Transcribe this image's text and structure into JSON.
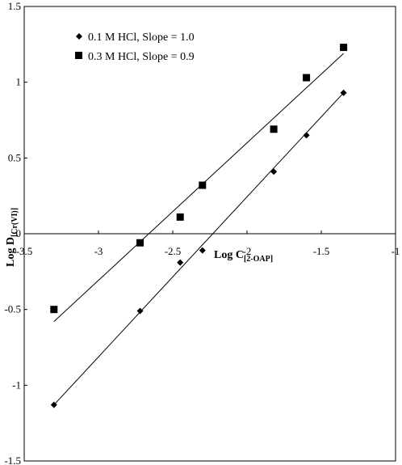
{
  "chart_data": {
    "type": "scatter",
    "xlabel": {
      "main": "Log C",
      "sub": "[2-OAP]"
    },
    "ylabel": {
      "main": "Log D",
      "sub": "[Cr(VI)]"
    },
    "xlim": [
      -3.5,
      -1
    ],
    "ylim": [
      -1.5,
      1.5
    ],
    "x_ticks": [
      "-3.5",
      "-3",
      "-2.5",
      "-2",
      "-1.5",
      "-1"
    ],
    "y_ticks": [
      "1.5",
      "1",
      "0.5",
      "0",
      "-0.5",
      "-1",
      "-1.5"
    ],
    "grid": false,
    "legend_position": "top-left",
    "series": [
      {
        "name": "0.1 M HCl, Slope = 1.0",
        "marker": "diamond",
        "color": "#000000",
        "x": [
          -3.3,
          -2.72,
          -2.45,
          -2.3,
          -1.82,
          -1.6,
          -1.35
        ],
        "y": [
          -1.13,
          -0.51,
          -0.19,
          -0.11,
          0.41,
          0.65,
          0.93
        ],
        "fit": {
          "x": [
            -3.3,
            -1.35
          ],
          "y": [
            -1.13,
            0.93
          ]
        }
      },
      {
        "name": "0.3 M HCl, Slope = 0.9",
        "marker": "square",
        "color": "#000000",
        "x": [
          -3.3,
          -2.72,
          -2.45,
          -2.3,
          -1.82,
          -1.6,
          -1.35
        ],
        "y": [
          -0.5,
          -0.06,
          0.11,
          0.32,
          0.69,
          1.03,
          1.23
        ],
        "fit": {
          "x": [
            -3.3,
            -1.35
          ],
          "y": [
            -0.58,
            1.19
          ]
        }
      }
    ]
  }
}
